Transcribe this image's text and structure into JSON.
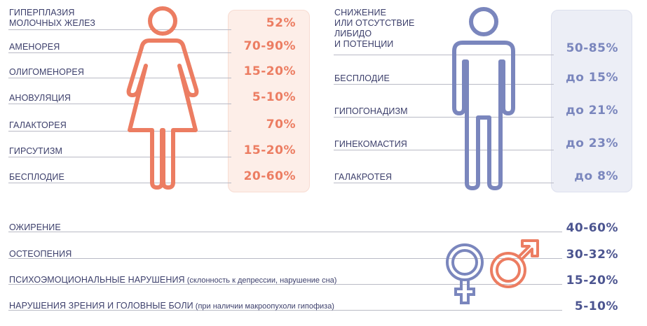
{
  "female": {
    "items": [
      {
        "label": "ГИПЕРПЛАЗИЯ\nМОЛОЧНЫХ ЖЕЛЕЗ",
        "value": "52%"
      },
      {
        "label": "АМЕНОРЕЯ",
        "value": "70-90%"
      },
      {
        "label": "ОЛИГОМЕНОРЕЯ",
        "value": "15-20%"
      },
      {
        "label": "АНОВУЛЯЦИЯ",
        "value": "5-10%"
      },
      {
        "label": "ГАЛАКТОРЕЯ",
        "value": "70%"
      },
      {
        "label": "ГИРСУТИЗМ",
        "value": "15-20%"
      },
      {
        "label": "БЕСПЛОДИЕ",
        "value": "20-60%"
      }
    ]
  },
  "male": {
    "items": [
      {
        "label": "СНИЖЕНИЕ\nИЛИ ОТСУТСТВИЕ\nЛИБИДО\nИ ПОТЕНЦИИ",
        "value": "50-85%"
      },
      {
        "label": "БЕСПЛОДИЕ",
        "value": "до 15%"
      },
      {
        "label": "ГИПОГОНАДИЗМ",
        "value": "до 21%"
      },
      {
        "label": "ГИНЕКОМАСТИЯ",
        "value": "до 23%"
      },
      {
        "label": "ГАЛАКРОТЕЯ",
        "value": "до 8%"
      }
    ]
  },
  "both": {
    "items": [
      {
        "label": "ОЖИРЕНИЕ",
        "note": "",
        "value": "40-60%"
      },
      {
        "label": "ОСТЕОПЕНИЯ",
        "note": "",
        "value": "30-32%"
      },
      {
        "label": "ПСИХОЭМОЦИОНАЛЬНЫЕ НАРУШЕНИЯ",
        "note": " (склонность к депрессии, нарушение сна)",
        "value": "15-20%"
      },
      {
        "label": "НАРУШЕНИЯ ЗРЕНИЯ И ГОЛОВНЫЕ БОЛИ",
        "note": " (при наличии макроопухоли гипофиза)",
        "value": "5-10%"
      }
    ]
  },
  "colors": {
    "female": "#ec7d62",
    "female_panel": "#fdeee8",
    "male": "#7a86bd",
    "male_panel": "#eceef6",
    "both": "#4c5590",
    "label": "#3c3f6b"
  },
  "icons": [
    "female-figure-icon",
    "male-figure-icon",
    "venus-symbol-icon",
    "mars-symbol-icon"
  ]
}
